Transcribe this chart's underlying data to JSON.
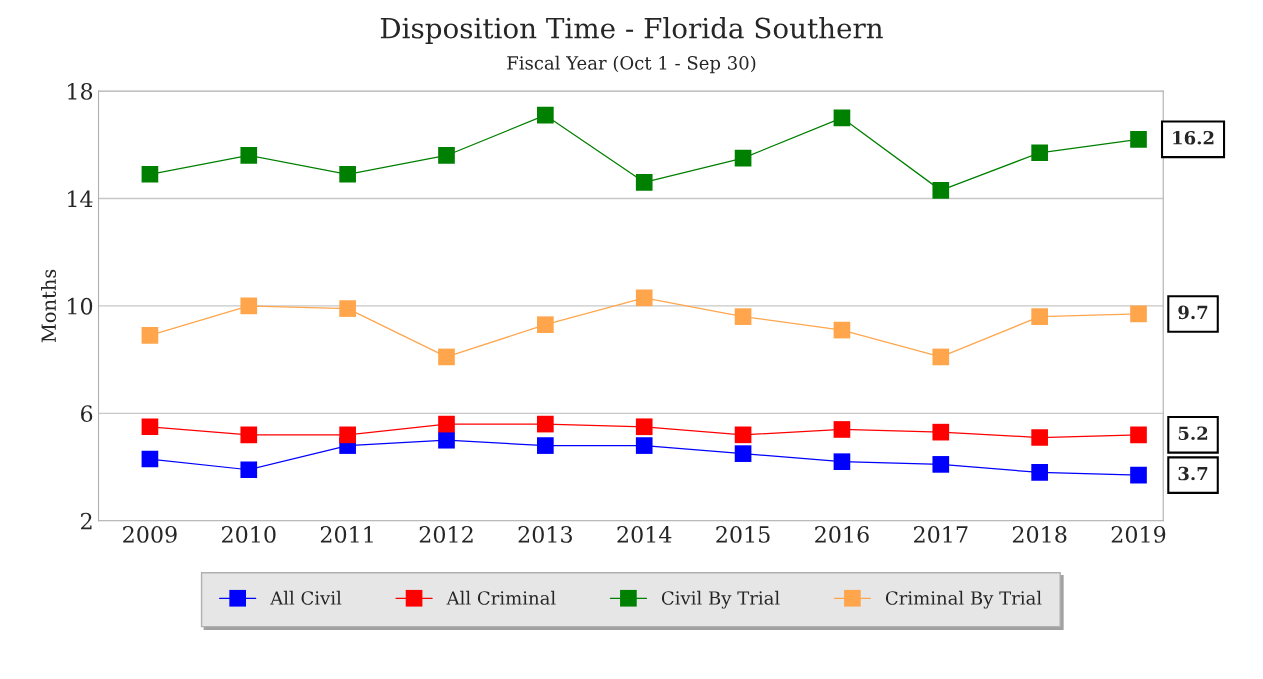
{
  "chart_data": {
    "type": "line",
    "title": "Disposition Time - Florida Southern",
    "subtitle": "Fiscal Year (Oct 1 - Sep 30)",
    "ylabel": "Months",
    "categories": [
      "2009",
      "2010",
      "2011",
      "2012",
      "2013",
      "2014",
      "2015",
      "2016",
      "2017",
      "2018",
      "2019"
    ],
    "series": [
      {
        "name": "All Civil",
        "color": "#0000ff",
        "values": [
          4.3,
          3.9,
          4.8,
          5.0,
          4.8,
          4.8,
          4.5,
          4.2,
          4.1,
          3.8,
          3.7
        ],
        "value_labels": [
          null,
          null,
          null,
          null,
          null,
          null,
          null,
          null,
          null,
          null,
          "3.7"
        ]
      },
      {
        "name": "All Criminal",
        "color": "#ff0000",
        "values": [
          5.5,
          5.2,
          5.2,
          5.6,
          5.6,
          5.5,
          5.2,
          5.4,
          5.3,
          5.1,
          5.2
        ],
        "value_labels": [
          null,
          null,
          null,
          null,
          null,
          null,
          null,
          null,
          null,
          null,
          "5.2"
        ]
      },
      {
        "name": "Civil By Trial",
        "color": "#008000",
        "values": [
          14.9,
          15.6,
          14.9,
          15.6,
          17.1,
          14.6,
          15.5,
          17.0,
          14.3,
          15.7,
          16.2
        ],
        "value_labels": [
          null,
          null,
          null,
          null,
          null,
          null,
          null,
          null,
          null,
          null,
          "16.2"
        ]
      },
      {
        "name": "Criminal By Trial",
        "color": "#ffa64d",
        "values": [
          8.9,
          10.0,
          9.9,
          8.1,
          9.3,
          10.3,
          9.6,
          9.1,
          8.1,
          9.6,
          9.7
        ],
        "value_labels": [
          null,
          null,
          null,
          null,
          null,
          null,
          null,
          null,
          null,
          null,
          "9.7"
        ]
      }
    ],
    "ylim": [
      2,
      18
    ],
    "yticks": [
      2,
      6,
      10,
      14,
      18
    ],
    "grid": "y",
    "legend": "bottom",
    "marker": "square",
    "line_style": "solid"
  }
}
